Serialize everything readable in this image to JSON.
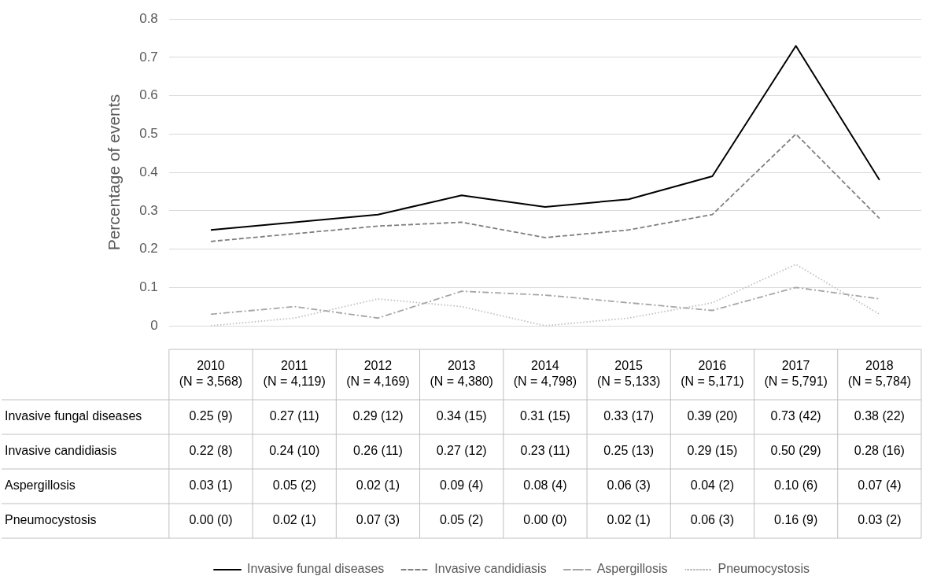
{
  "chart_data": {
    "type": "line",
    "ylabel": "Percentage of events",
    "categories": [
      "2010\n(N = 3,568)",
      "2011\n(N = 4,119)",
      "2012\n(N = 4,169)",
      "2013\n(N = 4,380)",
      "2014\n(N = 4,798)",
      "2015\n(N = 5,133)",
      "2016\n(N = 5,171)",
      "2017\n(N = 5,791)",
      "2018\n(N = 5,784)"
    ],
    "series": [
      {
        "name": "Invasive fungal diseases",
        "color": "#000000",
        "line_style": "solid",
        "values": [
          0.25,
          0.27,
          0.29,
          0.34,
          0.31,
          0.33,
          0.39,
          0.73,
          0.38
        ],
        "value_labels": [
          "0.25 (9)",
          "0.27 (11)",
          "0.29 (12)",
          "0.34 (15)",
          "0.31 (15)",
          "0.33 (17)",
          "0.39 (20)",
          "0.73 (42)",
          "0.38 (22)"
        ]
      },
      {
        "name": "Invasive candidiasis",
        "color": "#7f7f7f",
        "line_style": "dashed",
        "values": [
          0.22,
          0.24,
          0.26,
          0.27,
          0.23,
          0.25,
          0.29,
          0.5,
          0.28
        ],
        "value_labels": [
          "0.22 (8)",
          "0.24 (10)",
          "0.26 (11)",
          "0.27 (12)",
          "0.23 (11)",
          "0.25 (13)",
          "0.29 (15)",
          "0.50 (29)",
          "0.28 (16)"
        ]
      },
      {
        "name": "Aspergillosis",
        "color": "#a6a6a6",
        "line_style": "dashdot",
        "values": [
          0.03,
          0.05,
          0.02,
          0.09,
          0.08,
          0.06,
          0.04,
          0.1,
          0.07
        ],
        "value_labels": [
          "0.03 (1)",
          "0.05 (2)",
          "0.02 (1)",
          "0.09 (4)",
          "0.08 (4)",
          "0.06 (3)",
          "0.04 (2)",
          "0.10 (6)",
          "0.07 (4)"
        ]
      },
      {
        "name": "Pneumocystosis",
        "color": "#bfbfbf",
        "line_style": "dotted",
        "values": [
          0.0,
          0.02,
          0.07,
          0.05,
          0.0,
          0.02,
          0.06,
          0.16,
          0.03
        ],
        "value_labels": [
          "0.00 (0)",
          "0.02 (1)",
          "0.07 (3)",
          "0.05 (2)",
          "0.00 (0)",
          "0.02 (1)",
          "0.06 (3)",
          "0.16 (9)",
          "0.03 (2)"
        ]
      }
    ],
    "ylim": [
      0,
      0.8
    ],
    "yticks": [
      0,
      0.1,
      0.2,
      0.3,
      0.4,
      0.5,
      0.6,
      0.7,
      0.8
    ],
    "grid": "y",
    "legend": "bottom",
    "marker": "none"
  }
}
